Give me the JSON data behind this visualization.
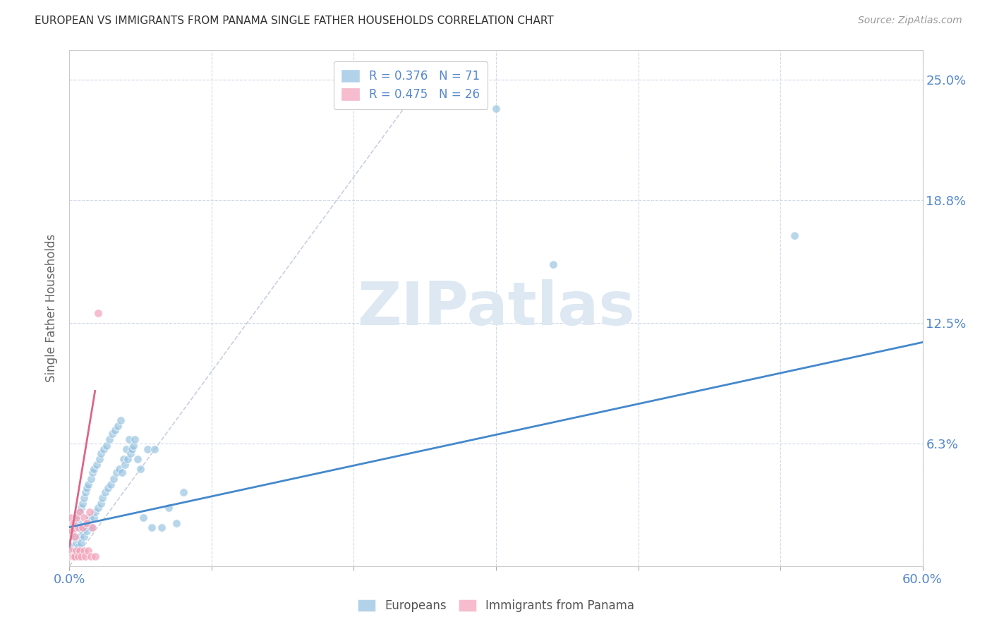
{
  "title": "EUROPEAN VS IMMIGRANTS FROM PANAMA SINGLE FATHER HOUSEHOLDS CORRELATION CHART",
  "source": "Source: ZipAtlas.com",
  "ylabel": "Single Father Households",
  "xlim": [
    0,
    0.6
  ],
  "ylim": [
    0,
    0.265
  ],
  "background_color": "#ffffff",
  "grid_color": "#d0d8e8",
  "watermark_text": "ZIPatlas",
  "blue_color": "#92c0e0",
  "pink_color": "#f4a0b8",
  "line_blue": "#4488cc",
  "line_pink": "#dd6688",
  "diag_color": "#c8cfe0",
  "title_color": "#333333",
  "tick_color": "#5588cc",
  "source_color": "#999999",
  "eu_x": [
    0.002,
    0.003,
    0.004,
    0.004,
    0.005,
    0.005,
    0.006,
    0.006,
    0.007,
    0.007,
    0.008,
    0.008,
    0.009,
    0.009,
    0.01,
    0.01,
    0.011,
    0.011,
    0.012,
    0.012,
    0.013,
    0.013,
    0.014,
    0.015,
    0.015,
    0.016,
    0.017,
    0.017,
    0.018,
    0.019,
    0.02,
    0.021,
    0.022,
    0.022,
    0.023,
    0.024,
    0.025,
    0.026,
    0.027,
    0.028,
    0.029,
    0.03,
    0.031,
    0.032,
    0.033,
    0.034,
    0.035,
    0.036,
    0.037,
    0.038,
    0.039,
    0.04,
    0.041,
    0.042,
    0.043,
    0.044,
    0.045,
    0.046,
    0.048,
    0.05,
    0.052,
    0.055,
    0.058,
    0.06,
    0.065,
    0.07,
    0.075,
    0.08,
    0.3,
    0.34,
    0.51
  ],
  "eu_y": [
    0.01,
    0.015,
    0.008,
    0.02,
    0.012,
    0.025,
    0.01,
    0.022,
    0.015,
    0.028,
    0.012,
    0.03,
    0.018,
    0.032,
    0.015,
    0.035,
    0.02,
    0.038,
    0.018,
    0.04,
    0.022,
    0.042,
    0.025,
    0.045,
    0.02,
    0.048,
    0.025,
    0.05,
    0.028,
    0.052,
    0.03,
    0.055,
    0.032,
    0.058,
    0.035,
    0.06,
    0.038,
    0.062,
    0.04,
    0.065,
    0.042,
    0.068,
    0.045,
    0.07,
    0.048,
    0.072,
    0.05,
    0.075,
    0.048,
    0.055,
    0.052,
    0.06,
    0.055,
    0.065,
    0.058,
    0.06,
    0.062,
    0.065,
    0.055,
    0.05,
    0.025,
    0.06,
    0.02,
    0.06,
    0.02,
    0.03,
    0.022,
    0.038,
    0.235,
    0.155,
    0.17
  ],
  "pa_x": [
    0.001,
    0.001,
    0.002,
    0.002,
    0.003,
    0.003,
    0.004,
    0.004,
    0.005,
    0.005,
    0.006,
    0.006,
    0.007,
    0.007,
    0.008,
    0.009,
    0.01,
    0.01,
    0.011,
    0.012,
    0.013,
    0.014,
    0.015,
    0.016,
    0.018,
    0.02
  ],
  "pa_y": [
    0.008,
    0.025,
    0.005,
    0.018,
    0.005,
    0.022,
    0.005,
    0.015,
    0.008,
    0.025,
    0.005,
    0.02,
    0.008,
    0.028,
    0.005,
    0.02,
    0.008,
    0.025,
    0.005,
    0.022,
    0.008,
    0.028,
    0.005,
    0.02,
    0.005,
    0.13
  ],
  "eu_line_x": [
    0.0,
    0.6
  ],
  "eu_line_y": [
    0.02,
    0.115
  ],
  "pa_line_x": [
    0.0,
    0.018
  ],
  "pa_line_y": [
    0.01,
    0.09
  ],
  "diag_line_x": [
    0.0,
    0.25
  ],
  "diag_line_y": [
    0.0,
    0.25
  ],
  "yticks": [
    0.0,
    0.063,
    0.125,
    0.188,
    0.25
  ],
  "ytick_labels": [
    "",
    "6.3%",
    "12.5%",
    "18.8%",
    "25.0%"
  ],
  "xticks": [
    0.0,
    0.1,
    0.2,
    0.3,
    0.4,
    0.5,
    0.6
  ],
  "xtick_labels": [
    "0.0%",
    "",
    "",
    "",
    "",
    "",
    "60.0%"
  ]
}
